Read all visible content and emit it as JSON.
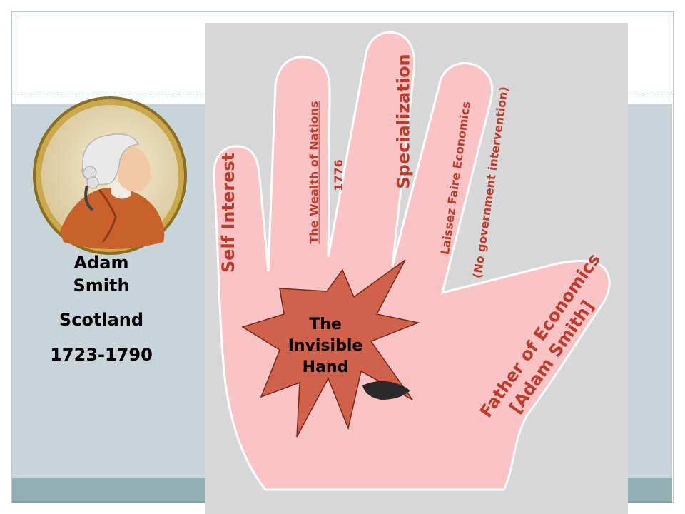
{
  "person": {
    "name_line1": "Adam",
    "name_line2": "Smith",
    "country": "Scotland",
    "years": "1723-1790"
  },
  "hand": {
    "pinky": "Self Interest",
    "ring_title": "The Wealth of Nations",
    "ring_year": "1776",
    "middle": "Specialization",
    "index_line1": "Laissez Faire Economics",
    "index_line2": "(No government intervention)",
    "thumb_line1": "Father of Economics",
    "thumb_line2": "[Adam Smith]"
  },
  "burst": {
    "line1": "The",
    "line2": "Invisible",
    "line3": "Hand"
  },
  "colors": {
    "hand_fill": "#fac4c4",
    "hand_text": "#c0392b",
    "burst_fill": "#d0614a",
    "slide_band": "#c7d4d9",
    "bottom_band": "#93b0b4"
  }
}
